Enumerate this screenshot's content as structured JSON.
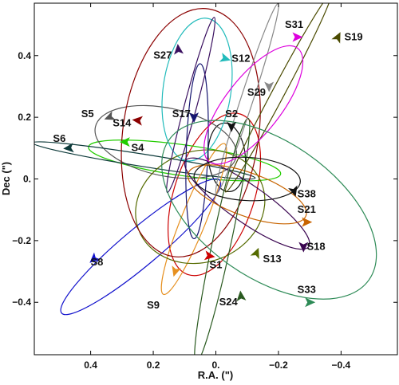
{
  "chart_data": {
    "type": "line",
    "title": "",
    "xlabel": "R.A. (\")",
    "ylabel": "Dec (\")",
    "xlim": [
      0.58,
      -0.58
    ],
    "ylim": [
      -0.57,
      0.57
    ],
    "x_inverted": true,
    "xticks": [
      {
        "value": 0.4,
        "label": "0.4"
      },
      {
        "value": 0.2,
        "label": "0.2"
      },
      {
        "value": 0.0,
        "label": "0."
      },
      {
        "value": -0.2,
        "label": "−0.2"
      },
      {
        "value": -0.4,
        "label": "−0.4"
      }
    ],
    "yticks": [
      {
        "value": 0.4,
        "label": "0.4"
      },
      {
        "value": 0.2,
        "label": "0.2"
      },
      {
        "value": 0.0,
        "label": "0."
      },
      {
        "value": -0.2,
        "label": "−0.2"
      },
      {
        "value": -0.4,
        "label": "−0.4"
      }
    ],
    "grid": false,
    "legend": "none",
    "series": [
      {
        "name": "S1",
        "color": "#cc0000",
        "label_pos": [
          0.0,
          -0.29
        ],
        "arrow": {
          "at": [
            0.02,
            -0.25
          ],
          "dir": [
            -1.0,
            -0.15
          ]
        },
        "orbit": {
          "cx": 0.005,
          "cy": -0.05,
          "a": 0.27,
          "b": 0.13,
          "angle": 72
        }
      },
      {
        "name": "S2",
        "color": "#111111",
        "label_pos": [
          -0.05,
          0.2
        ],
        "arrow": {
          "at": [
            -0.05,
            0.17
          ],
          "dir": [
            0.0,
            -1.0
          ]
        },
        "orbit": {
          "cx": -0.035,
          "cy": 0.07,
          "a": 0.11,
          "b": 0.06,
          "angle": 95
        }
      },
      {
        "name": "S4",
        "color": "#22cc00",
        "label_pos": [
          0.25,
          0.09
        ],
        "arrow": {
          "at": [
            0.29,
            0.12
          ],
          "dir": [
            1.0,
            0.0
          ]
        },
        "orbit": {
          "cx": 0.1,
          "cy": 0.06,
          "a": 0.31,
          "b": 0.05,
          "angle": -8
        }
      },
      {
        "name": "S5",
        "color": "#555555",
        "label_pos": [
          0.41,
          0.2
        ],
        "arrow": {
          "at": [
            0.34,
            0.2
          ],
          "dir": [
            1.0,
            -0.4
          ]
        },
        "orbit": {
          "cx": 0.16,
          "cy": 0.12,
          "a": 0.23,
          "b": 0.11,
          "angle": -12
        }
      },
      {
        "name": "S6",
        "color": "#0d3a3a",
        "label_pos": [
          0.5,
          0.12
        ],
        "arrow": {
          "at": [
            0.47,
            0.1
          ],
          "dir": [
            1.0,
            -0.1
          ]
        },
        "orbit": {
          "cx": 0.23,
          "cy": 0.06,
          "a": 0.36,
          "b": 0.02,
          "angle": -9
        }
      },
      {
        "name": "S8",
        "color": "#1111cc",
        "label_pos": [
          0.38,
          -0.28
        ],
        "arrow": {
          "at": [
            0.39,
            -0.26
          ],
          "dir": [
            1.0,
            -0.9
          ]
        },
        "orbit": {
          "cx": 0.24,
          "cy": -0.22,
          "a": 0.33,
          "b": 0.06,
          "angle": 40
        }
      },
      {
        "name": "S9",
        "color": "#e69020",
        "label_pos": [
          0.2,
          -0.42
        ],
        "arrow": {
          "at": [
            0.13,
            -0.3
          ],
          "dir": [
            0.3,
            -1.0
          ]
        },
        "orbit": {
          "cx": 0.07,
          "cy": -0.13,
          "a": 0.26,
          "b": 0.04,
          "angle": 68
        }
      },
      {
        "name": "S12",
        "color": "#22bbbb",
        "label_pos": [
          -0.08,
          0.38
        ],
        "arrow": {
          "at": [
            -0.03,
            0.39
          ],
          "dir": [
            -1.0,
            -0.3
          ]
        },
        "orbit": {
          "cx": 0.06,
          "cy": 0.29,
          "a": 0.23,
          "b": 0.11,
          "angle": 82
        }
      },
      {
        "name": "S13",
        "color": "#556b00",
        "label_pos": [
          -0.18,
          -0.27
        ],
        "arrow": {
          "at": [
            -0.13,
            -0.24
          ],
          "dir": [
            -0.4,
            1.0
          ]
        },
        "orbit": {
          "cx": 0.05,
          "cy": -0.09,
          "a": 0.21,
          "b": 0.18,
          "angle": 20
        }
      },
      {
        "name": "S14",
        "color": "#8b0000",
        "label_pos": [
          0.3,
          0.17
        ],
        "arrow": {
          "at": [
            0.25,
            0.19
          ],
          "dir": [
            1.0,
            0.1
          ]
        },
        "orbit": {
          "cx": 0.08,
          "cy": 0.15,
          "a": 0.4,
          "b": 0.22,
          "angle": 82
        }
      },
      {
        "name": "S17",
        "color": "#151570",
        "label_pos": [
          0.11,
          0.2
        ],
        "arrow": {
          "at": [
            0.07,
            0.2
          ],
          "dir": [
            0.0,
            -1.0
          ]
        },
        "orbit": {
          "cx": 0.06,
          "cy": 0.09,
          "a": 0.28,
          "b": 0.035,
          "angle": 88
        }
      },
      {
        "name": "S18",
        "color": "#3a0550",
        "label_pos": [
          -0.32,
          -0.23
        ],
        "arrow": {
          "at": [
            -0.28,
            -0.22
          ],
          "dir": [
            0.0,
            -1.0
          ]
        },
        "orbit": {
          "cx": -0.1,
          "cy": -0.08,
          "a": 0.24,
          "b": 0.06,
          "angle": -35
        }
      },
      {
        "name": "S19",
        "color": "#4a4a00",
        "label_pos": [
          -0.44,
          0.45
        ],
        "arrow": {
          "at": [
            -0.39,
            0.46
          ],
          "dir": [
            -0.5,
            1.0
          ]
        },
        "orbit": {
          "cx": -0.2,
          "cy": 0.28,
          "a": 0.36,
          "b": 0.02,
          "angle": 62
        }
      },
      {
        "name": "S21",
        "color": "#c86400",
        "label_pos": [
          -0.29,
          -0.11
        ],
        "arrow": {
          "at": [
            -0.29,
            -0.14
          ],
          "dir": [
            -1.0,
            0.0
          ]
        },
        "orbit": {
          "cx": -0.1,
          "cy": -0.05,
          "a": 0.2,
          "b": 0.07,
          "angle": -20
        }
      },
      {
        "name": "S24",
        "color": "#2a5a20",
        "label_pos": [
          -0.04,
          -0.41
        ],
        "arrow": {
          "at": [
            -0.08,
            -0.38
          ],
          "dir": [
            0.1,
            1.0
          ]
        },
        "orbit": {
          "cx": -0.02,
          "cy": -0.2,
          "a": 0.4,
          "b": 0.03,
          "angle": 78
        }
      },
      {
        "name": "S27",
        "color": "#3a1060",
        "label_pos": [
          0.17,
          0.39
        ],
        "arrow": {
          "at": [
            0.12,
            0.42
          ],
          "dir": [
            0.1,
            1.0
          ]
        },
        "orbit": {
          "cx": 0.08,
          "cy": 0.24,
          "a": 0.29,
          "b": 0.02,
          "angle": 75
        }
      },
      {
        "name": "S29",
        "color": "#888888",
        "label_pos": [
          -0.13,
          0.27
        ],
        "arrow": {
          "at": [
            -0.17,
            0.3
          ],
          "dir": [
            0.0,
            -1.0
          ]
        },
        "orbit": {
          "cx": -0.1,
          "cy": 0.26,
          "a": 0.32,
          "b": 0.02,
          "angle": 72
        }
      },
      {
        "name": "S31",
        "color": "#dd00dd",
        "label_pos": [
          -0.25,
          0.49
        ],
        "arrow": {
          "at": [
            -0.26,
            0.46
          ],
          "dir": [
            -1.0,
            0.0
          ]
        },
        "orbit": {
          "cx": -0.12,
          "cy": 0.24,
          "a": 0.23,
          "b": 0.09,
          "angle": 52
        }
      },
      {
        "name": "S33",
        "color": "#2e8b57",
        "label_pos": [
          -0.29,
          -0.37
        ],
        "arrow": {
          "at": [
            -0.3,
            -0.4
          ],
          "dir": [
            -1.0,
            0.0
          ]
        },
        "orbit": {
          "cx": -0.17,
          "cy": -0.1,
          "a": 0.39,
          "b": 0.22,
          "angle": -35
        }
      },
      {
        "name": "S38",
        "color": "#111111",
        "label_pos": [
          -0.29,
          -0.06
        ],
        "arrow": {
          "at": [
            -0.25,
            -0.04
          ],
          "dir": [
            -0.3,
            -1.0
          ]
        },
        "orbit": {
          "cx": -0.1,
          "cy": 0.0,
          "a": 0.17,
          "b": 0.07,
          "angle": -3
        }
      }
    ]
  }
}
